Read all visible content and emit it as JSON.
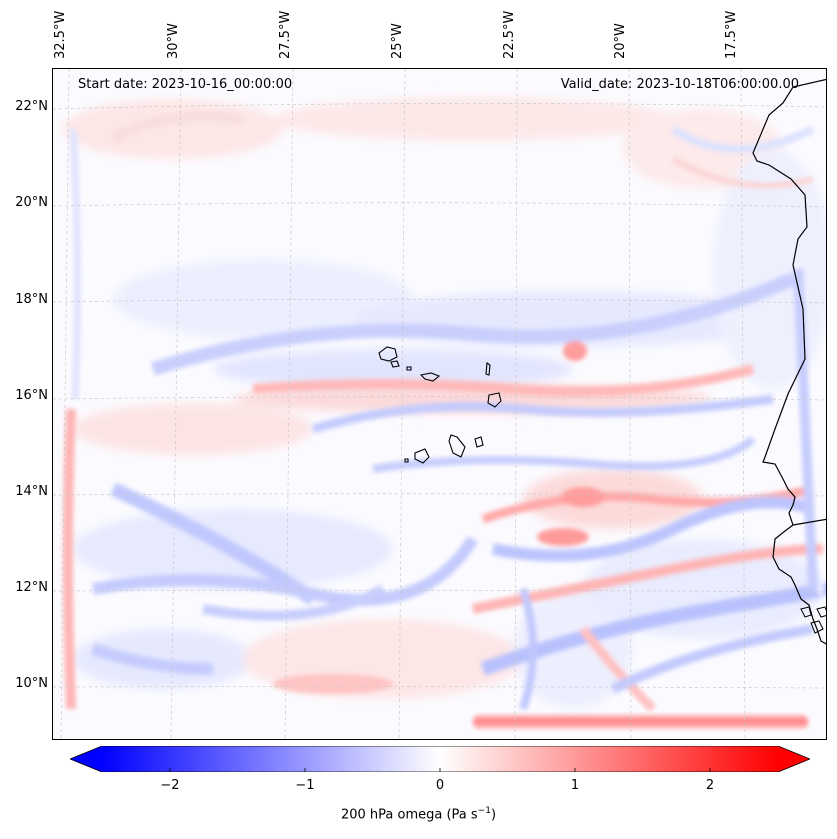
{
  "map": {
    "start_date": "Start date: 2023-10-16_00:00:00",
    "valid_date": "Valid_date: 2023-10-18T06:00:00.00",
    "lon_labels": [
      "32.5°W",
      "30°W",
      "27.5°W",
      "25°W",
      "22.5°W",
      "20°W",
      "17.5°W"
    ],
    "lat_labels": [
      "22°N",
      "20°N",
      "18°N",
      "16°N",
      "14°N",
      "12°N",
      "10°N"
    ],
    "field": "200 hPa omega",
    "coastline_color": "#000000",
    "gridline_color": "#c8c8c8"
  },
  "colorbar": {
    "label_prefix": "200 hPa omega (Pa s",
    "label_exp": "−1",
    "label_suffix": ")",
    "ticks": [
      "−2",
      "−1",
      "0",
      "1",
      "2"
    ],
    "range": [
      -2.6,
      2.6
    ],
    "extend": "both",
    "colormap": "bwr",
    "low_color": "#0000ff",
    "mid_color": "#ffffff",
    "high_color": "#ff0000"
  }
}
